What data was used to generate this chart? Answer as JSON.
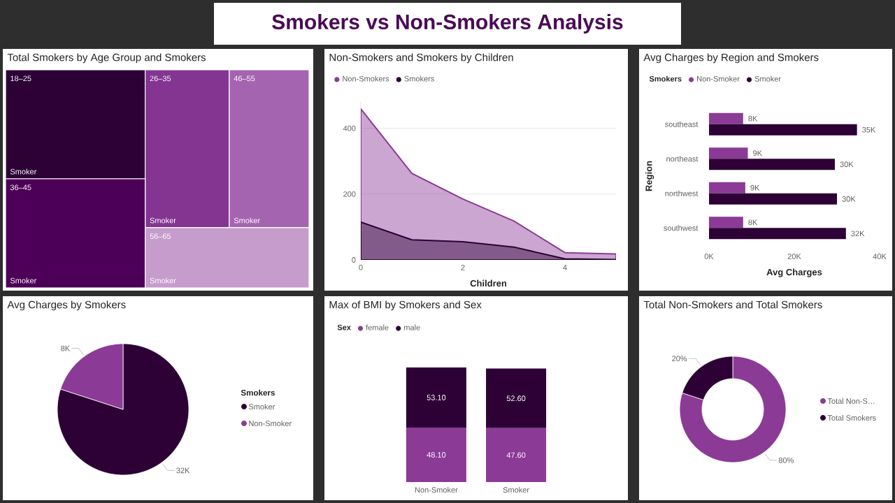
{
  "chart_data": [
    {
      "type": "other",
      "title": "Smokers vs Non-Smokers Analysis"
    },
    {
      "type": "other",
      "title": "Total Smokers by Age Group and Smokers",
      "categories": [
        "18–25",
        "26–35",
        "36–45",
        "46–55",
        "56–65"
      ],
      "colors": [
        "#2d0036",
        "#833591",
        "#4d0057",
        "#a564b0",
        "#c59ccb"
      ],
      "annotations": [
        "Smoker",
        "Smoker",
        "Smoker",
        "Smoker",
        "Smoker"
      ]
    },
    {
      "type": "area",
      "title": "Non-Smokers and Smokers by Children",
      "xlabel": "Children",
      "x": [
        0,
        1,
        2,
        3,
        4,
        5
      ],
      "series": [
        {
          "name": "Non-Smokers",
          "color": "#8b3a96",
          "values": [
            459,
            263,
            185,
            118,
            22,
            18
          ]
        },
        {
          "name": "Smokers",
          "color": "#2d0036",
          "values": [
            115,
            61,
            55,
            39,
            3,
            1
          ]
        }
      ],
      "xlim": [
        0,
        5
      ],
      "xticks": [
        0,
        2,
        4
      ],
      "ylim": [
        0,
        480
      ],
      "yticks": [
        0,
        200,
        400
      ],
      "grid": "y",
      "legend": "top left"
    },
    {
      "type": "bar",
      "orientation": "horizontal",
      "title": "Avg Charges by Region and Smokers",
      "xlabel": "Avg Charges",
      "ylabel": "Region",
      "legend_title": "Smokers",
      "categories": [
        "southeast",
        "northeast",
        "northwest",
        "southwest"
      ],
      "series": [
        {
          "name": "Non-Smoker",
          "color": "#8b3a96",
          "values": [
            8000,
            9100,
            8500,
            8000
          ],
          "value_labels": [
            "8K",
            "9K",
            "9K",
            "8K"
          ]
        },
        {
          "name": "Smoker",
          "color": "#2d0036",
          "values": [
            34700,
            29500,
            30000,
            32100
          ],
          "value_labels": [
            "35K",
            "30K",
            "30K",
            "32K"
          ]
        }
      ],
      "xlim": [
        0,
        40000
      ],
      "xticks": [
        {
          "value": 0,
          "label": "0K"
        },
        {
          "value": 20000,
          "label": "20K"
        },
        {
          "value": 40000,
          "label": "40K"
        }
      ],
      "legend": "top left"
    },
    {
      "type": "pie",
      "title": "Avg Charges by Smokers",
      "legend_title": "Smokers",
      "categories": [
        "Smoker",
        "Non-Smoker"
      ],
      "values": [
        32000,
        8000
      ],
      "colors": [
        "#2d0036",
        "#8b3a96"
      ],
      "value_labels": [
        "32K",
        "8K"
      ],
      "legend": "right"
    },
    {
      "type": "bar",
      "stacked": true,
      "title": "Max of BMI by Smokers and Sex",
      "legend_title": "Sex",
      "categories": [
        "Non-Smoker",
        "Smoker"
      ],
      "series": [
        {
          "name": "female",
          "color": "#8b3a96",
          "values": [
            48.1,
            47.6
          ],
          "value_labels": [
            "48.10",
            "47.60"
          ]
        },
        {
          "name": "male",
          "color": "#2d0036",
          "values": [
            53.1,
            52.6
          ],
          "value_labels": [
            "53.10",
            "52.60"
          ]
        }
      ],
      "legend": "top left"
    },
    {
      "type": "donut",
      "title": "Total Non-Smokers and Total Smokers",
      "categories": [
        "Total Non-S…",
        "Total Smokers"
      ],
      "values": [
        80,
        20
      ],
      "colors": [
        "#8b3a96",
        "#2d0036"
      ],
      "value_labels": [
        "80%",
        "20%"
      ],
      "legend": "right"
    }
  ]
}
